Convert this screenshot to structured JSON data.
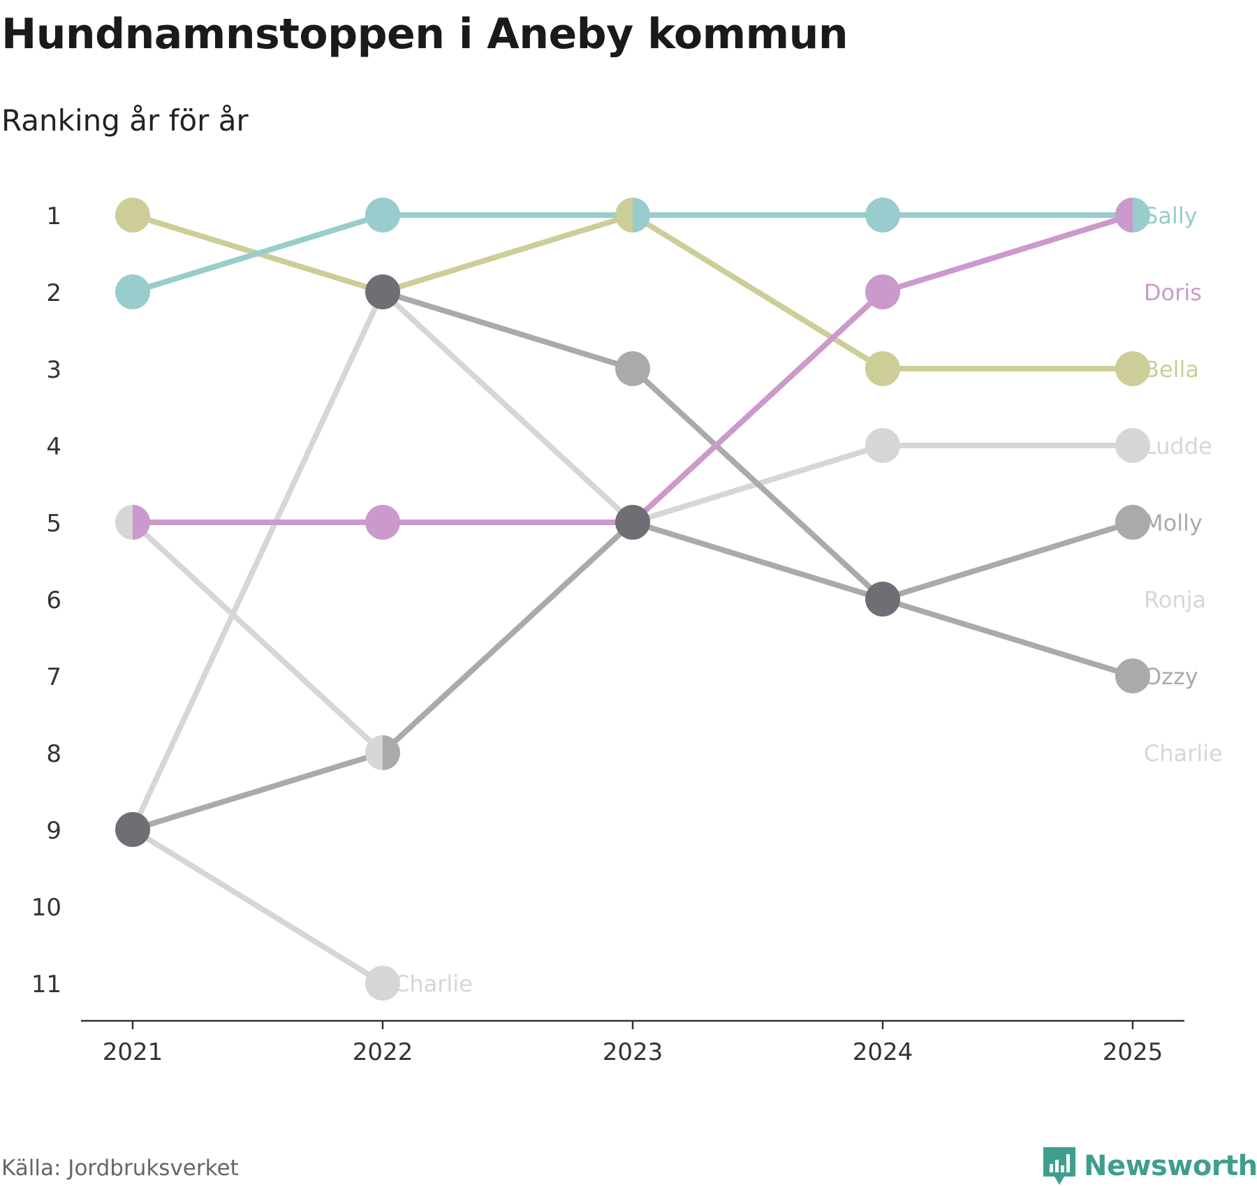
{
  "title": "Hundnamnstoppen i Aneby kommun",
  "subtitle": "Ranking år för år",
  "source": "Källa: Jordbruksverket",
  "brand": {
    "name": "Newsworthy",
    "icon": "newsworthy-logo-icon",
    "color": "#3f9e8e"
  },
  "chart_data": {
    "type": "bump",
    "title": "Hundnamnstoppen i Aneby kommun",
    "subtitle": "Ranking år för år",
    "xlabel": "",
    "ylabel": "",
    "years": [
      "2021",
      "2022",
      "2023",
      "2024",
      "2025"
    ],
    "y_ticks": [
      "1",
      "2",
      "3",
      "4",
      "5",
      "6",
      "7",
      "8",
      "9",
      "10",
      "11"
    ],
    "ylim": [
      1,
      11
    ],
    "grid": false,
    "series": [
      {
        "name": "Charlie",
        "color": "#d6d6d6",
        "ranks": [
          9,
          11,
          null,
          null,
          null
        ],
        "end_rank": 8
      },
      {
        "name": "Ronja",
        "color": "#d6d6d6",
        "ranks": [
          5,
          8,
          5,
          6,
          null
        ],
        "end_rank": 6
      },
      {
        "name": "Ludde",
        "color": "#d6d6d6",
        "ranks": [
          9,
          2,
          5,
          4,
          4
        ],
        "end_rank": 4
      },
      {
        "name": "Molly",
        "color": "#aaaaaa",
        "ranks": [
          9,
          8,
          5,
          6,
          5
        ],
        "end_rank": 5
      },
      {
        "name": "Ozzy",
        "color": "#aaaaaa",
        "ranks": [
          null,
          2,
          3,
          6,
          7
        ],
        "end_rank": 7
      },
      {
        "name": "Bella",
        "color": "#cdcd98",
        "ranks": [
          1,
          2,
          1,
          3,
          3
        ],
        "end_rank": 3
      },
      {
        "name": "Doris",
        "color": "#cc99cc",
        "ranks": [
          5,
          5,
          5,
          2,
          1
        ],
        "end_rank": 2
      },
      {
        "name": "Sally",
        "color": "#99cccc",
        "ranks": [
          2,
          1,
          1,
          1,
          1
        ],
        "end_rank": 1
      }
    ],
    "inline_labels": [
      {
        "name": "Charlie",
        "year": "2022",
        "rank": 11,
        "color": "#d6d6d6"
      }
    ],
    "shared_point_color": "#6e6e75"
  }
}
